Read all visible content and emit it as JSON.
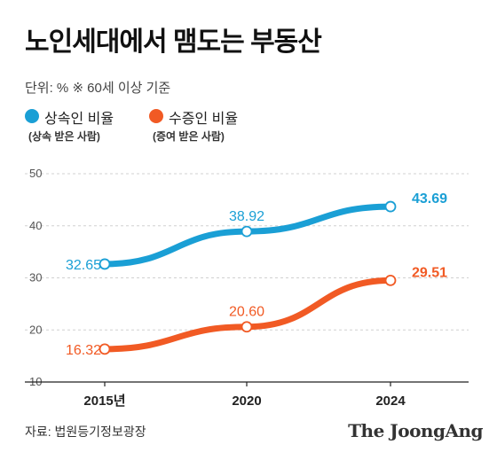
{
  "header": {
    "title": "노인세대에서 맴도는 부동산",
    "subtitle": "단위: %   ※ 60세 이상 기준"
  },
  "legend": [
    {
      "label": "상속인 비율",
      "note": "(상속 받은 사람)",
      "color": "#1a9fd5"
    },
    {
      "label": "수증인 비율",
      "note": "(증여 받은 사람)",
      "color": "#f15a24"
    }
  ],
  "chart_data": {
    "type": "line",
    "x": [
      "2015년",
      "2020",
      "2024"
    ],
    "ylim": [
      10,
      50
    ],
    "yticks": [
      "50",
      "40",
      "30",
      "20",
      "10"
    ],
    "grid": true,
    "series": [
      {
        "name": "상속인 비율",
        "values": [
          32.65,
          38.92,
          43.69
        ],
        "labels": [
          "32.65",
          "38.92",
          "43.69"
        ],
        "color": "#1a9fd5"
      },
      {
        "name": "수증인 비율",
        "values": [
          16.32,
          20.6,
          29.51
        ],
        "labels": [
          "16.32",
          "20.60",
          "29.51"
        ],
        "color": "#f15a24"
      }
    ]
  },
  "footer": {
    "source": "자료: 법원등기정보광장",
    "logo": "The JoongAng"
  }
}
